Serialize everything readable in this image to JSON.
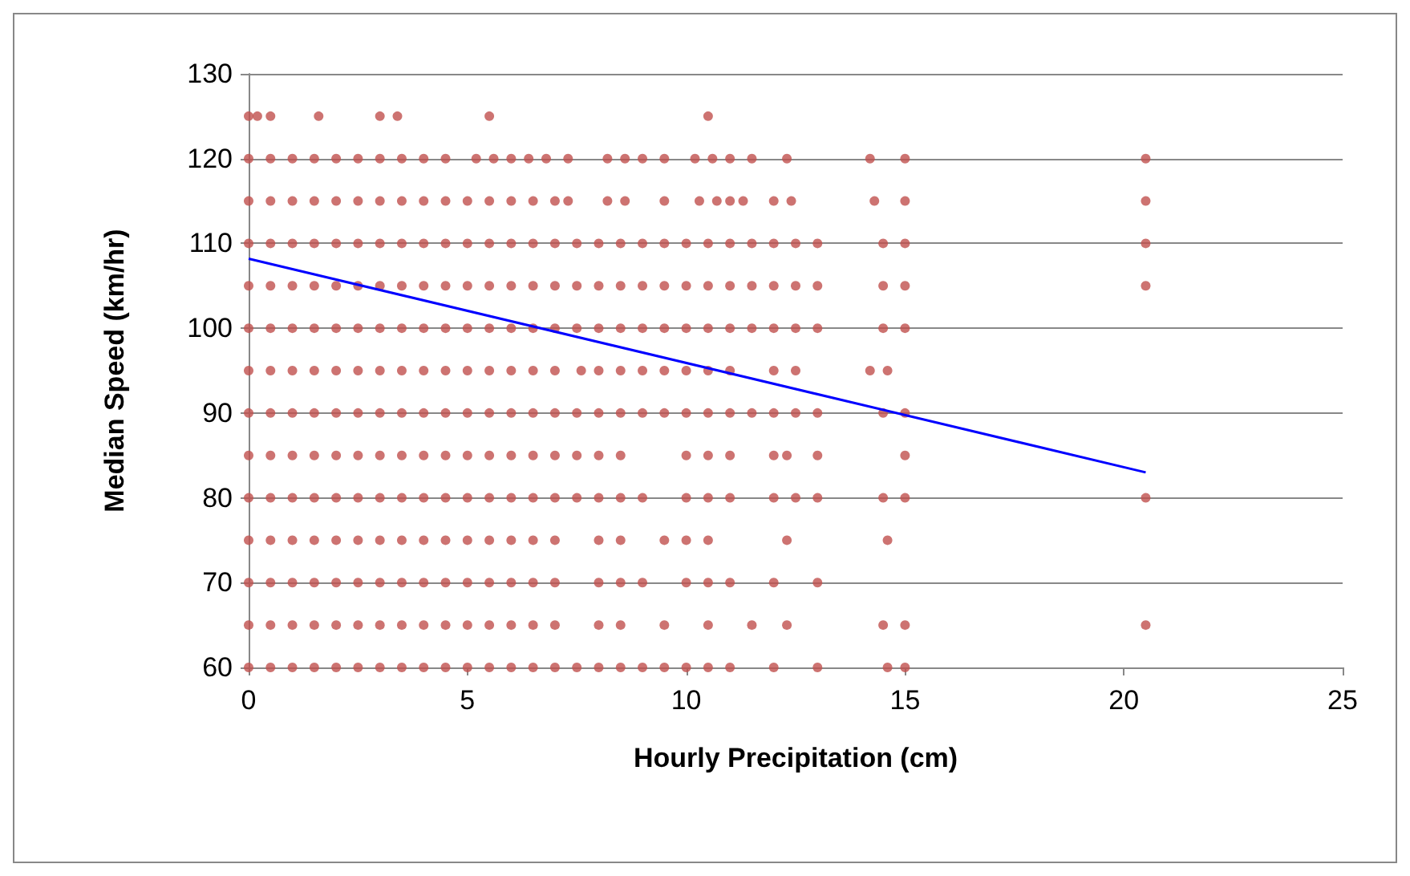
{
  "chart_data": {
    "type": "scatter",
    "xlabel": "Hourly Precipitation (cm)",
    "ylabel": "Median Speed (km/hr)",
    "xlim": [
      0,
      25
    ],
    "xticks": [
      0,
      5,
      10,
      15,
      20,
      25
    ],
    "ylim": [
      60,
      130
    ],
    "yticks": [
      60,
      70,
      80,
      90,
      100,
      110,
      120,
      130
    ],
    "grid": "y",
    "marker": "circle",
    "series": [
      {
        "color": "#c0504d",
        "x": [
          0,
          0.2,
          0.5,
          1.6,
          3,
          3.4,
          5.5,
          10.5
        ],
        "values": [
          125,
          125,
          125,
          125,
          125,
          125,
          125,
          125
        ]
      },
      {
        "color": "#c0504d",
        "x": [
          0,
          0.5,
          1,
          1.5,
          2,
          2.5,
          3,
          3.5,
          4,
          4.5,
          5.2,
          5.6,
          6,
          6.4,
          6.8,
          7.3,
          8.2,
          8.6,
          9,
          9.5,
          10.2,
          10.6,
          11,
          11.5,
          12.3,
          14.2,
          15,
          20.5
        ],
        "values": [
          120,
          120,
          120,
          120,
          120,
          120,
          120,
          120,
          120,
          120,
          120,
          120,
          120,
          120,
          120,
          120,
          120,
          120,
          120,
          120,
          120,
          120,
          120,
          120,
          120,
          120,
          120,
          120
        ]
      },
      {
        "color": "#c0504d",
        "x": [
          0,
          0.5,
          1,
          1.5,
          2,
          2.5,
          3,
          3.5,
          4,
          4.5,
          5,
          5.5,
          6,
          6.5,
          7,
          7.3,
          8.2,
          8.6,
          9.5,
          10.3,
          10.7,
          11,
          11.3,
          12,
          12.4,
          14.3,
          15,
          20.5
        ],
        "values": [
          115,
          115,
          115,
          115,
          115,
          115,
          115,
          115,
          115,
          115,
          115,
          115,
          115,
          115,
          115,
          115,
          115,
          115,
          115,
          115,
          115,
          115,
          115,
          115,
          115,
          115,
          115,
          115
        ]
      },
      {
        "color": "#c0504d",
        "x": [
          0,
          0.5,
          1,
          1.5,
          2,
          2.5,
          3,
          3.5,
          4,
          4.5,
          5,
          5.5,
          6,
          6.5,
          7,
          7.5,
          8,
          8.5,
          9,
          9.5,
          10,
          10.5,
          11,
          11.5,
          12,
          12.5,
          13,
          14.5,
          15,
          20.5
        ],
        "values": [
          110,
          110,
          110,
          110,
          110,
          110,
          110,
          110,
          110,
          110,
          110,
          110,
          110,
          110,
          110,
          110,
          110,
          110,
          110,
          110,
          110,
          110,
          110,
          110,
          110,
          110,
          110,
          110,
          110,
          110
        ]
      },
      {
        "color": "#c0504d",
        "x": [
          0,
          0.5,
          1,
          1.5,
          2,
          2.5,
          3,
          3.5,
          4,
          4.5,
          5,
          5.5,
          6,
          6.5,
          7,
          7.5,
          8,
          8.5,
          9,
          9.5,
          10,
          10.5,
          11,
          11.5,
          12,
          12.5,
          13,
          14.5,
          15,
          20.5
        ],
        "values": [
          105,
          105,
          105,
          105,
          105,
          105,
          105,
          105,
          105,
          105,
          105,
          105,
          105,
          105,
          105,
          105,
          105,
          105,
          105,
          105,
          105,
          105,
          105,
          105,
          105,
          105,
          105,
          105,
          105,
          105
        ]
      },
      {
        "color": "#c0504d",
        "x": [
          0,
          0.5,
          1,
          1.5,
          2,
          2.5,
          3,
          3.5,
          4,
          4.5,
          5,
          5.5,
          6,
          6.5,
          7,
          7.5,
          8,
          8.5,
          9,
          9.5,
          10,
          10.5,
          11,
          11.5,
          12,
          12.5,
          13,
          14.5,
          15
        ],
        "values": [
          100,
          100,
          100,
          100,
          100,
          100,
          100,
          100,
          100,
          100,
          100,
          100,
          100,
          100,
          100,
          100,
          100,
          100,
          100,
          100,
          100,
          100,
          100,
          100,
          100,
          100,
          100,
          100,
          100
        ]
      },
      {
        "color": "#c0504d",
        "x": [
          0,
          0.5,
          1,
          1.5,
          2,
          2.5,
          3,
          3.5,
          4,
          4.5,
          5,
          5.5,
          6,
          6.5,
          7,
          7.6,
          8,
          8.5,
          9,
          9.5,
          10,
          10.5,
          11,
          12,
          12.5,
          14.2,
          14.6
        ],
        "values": [
          95,
          95,
          95,
          95,
          95,
          95,
          95,
          95,
          95,
          95,
          95,
          95,
          95,
          95,
          95,
          95,
          95,
          95,
          95,
          95,
          95,
          95,
          95,
          95,
          95,
          95,
          95
        ]
      },
      {
        "color": "#c0504d",
        "x": [
          0,
          0.5,
          1,
          1.5,
          2,
          2.5,
          3,
          3.5,
          4,
          4.5,
          5,
          5.5,
          6,
          6.5,
          7,
          7.5,
          8,
          8.5,
          9,
          9.5,
          10,
          10.5,
          11,
          11.5,
          12,
          12.5,
          13,
          14.5,
          15
        ],
        "values": [
          90,
          90,
          90,
          90,
          90,
          90,
          90,
          90,
          90,
          90,
          90,
          90,
          90,
          90,
          90,
          90,
          90,
          90,
          90,
          90,
          90,
          90,
          90,
          90,
          90,
          90,
          90,
          90,
          90
        ]
      },
      {
        "color": "#c0504d",
        "x": [
          0,
          0.5,
          1,
          1.5,
          2,
          2.5,
          3,
          3.5,
          4,
          4.5,
          5,
          5.5,
          6,
          6.5,
          7,
          7.5,
          8,
          8.5,
          10,
          10.5,
          11,
          12,
          12.3,
          13,
          15
        ],
        "values": [
          85,
          85,
          85,
          85,
          85,
          85,
          85,
          85,
          85,
          85,
          85,
          85,
          85,
          85,
          85,
          85,
          85,
          85,
          85,
          85,
          85,
          85,
          85,
          85,
          85
        ]
      },
      {
        "color": "#c0504d",
        "x": [
          0,
          0.5,
          1,
          1.5,
          2,
          2.5,
          3,
          3.5,
          4,
          4.5,
          5,
          5.5,
          6,
          6.5,
          7,
          7.5,
          8,
          8.5,
          9,
          10,
          10.5,
          11,
          12,
          12.5,
          13,
          14.5,
          15,
          20.5
        ],
        "values": [
          80,
          80,
          80,
          80,
          80,
          80,
          80,
          80,
          80,
          80,
          80,
          80,
          80,
          80,
          80,
          80,
          80,
          80,
          80,
          80,
          80,
          80,
          80,
          80,
          80,
          80,
          80,
          80
        ]
      },
      {
        "color": "#c0504d",
        "x": [
          0,
          0.5,
          1,
          1.5,
          2,
          2.5,
          3,
          3.5,
          4,
          4.5,
          5,
          5.5,
          6,
          6.5,
          7,
          8,
          8.5,
          9.5,
          10,
          10.5,
          12.3,
          14.6
        ],
        "values": [
          75,
          75,
          75,
          75,
          75,
          75,
          75,
          75,
          75,
          75,
          75,
          75,
          75,
          75,
          75,
          75,
          75,
          75,
          75,
          75,
          75,
          75
        ]
      },
      {
        "color": "#c0504d",
        "x": [
          0,
          0.5,
          1,
          1.5,
          2,
          2.5,
          3,
          3.5,
          4,
          4.5,
          5,
          5.5,
          6,
          6.5,
          7,
          8,
          8.5,
          9,
          10,
          10.5,
          11,
          12,
          13
        ],
        "values": [
          70,
          70,
          70,
          70,
          70,
          70,
          70,
          70,
          70,
          70,
          70,
          70,
          70,
          70,
          70,
          70,
          70,
          70,
          70,
          70,
          70,
          70,
          70
        ]
      },
      {
        "color": "#c0504d",
        "x": [
          0,
          0.5,
          1,
          1.5,
          2,
          2.5,
          3,
          3.5,
          4,
          4.5,
          5,
          5.5,
          6,
          6.5,
          7,
          8,
          8.5,
          9.5,
          10.5,
          11.5,
          12.3,
          14.5,
          15,
          20.5
        ],
        "values": [
          65,
          65,
          65,
          65,
          65,
          65,
          65,
          65,
          65,
          65,
          65,
          65,
          65,
          65,
          65,
          65,
          65,
          65,
          65,
          65,
          65,
          65,
          65,
          65
        ]
      },
      {
        "color": "#c0504d",
        "x": [
          0,
          0.5,
          1,
          1.5,
          2,
          2.5,
          3,
          3.5,
          4,
          4.5,
          5,
          5.5,
          6,
          6.5,
          7,
          7.5,
          8,
          8.5,
          9,
          9.5,
          10,
          10.5,
          11,
          12,
          13,
          14.6,
          15
        ],
        "values": [
          60,
          60,
          60,
          60,
          60,
          60,
          60,
          60,
          60,
          60,
          60,
          60,
          60,
          60,
          60,
          60,
          60,
          60,
          60,
          60,
          60,
          60,
          60,
          60,
          60,
          60,
          60
        ]
      },
      {
        "type": "line",
        "color": "#0000ff",
        "marker": "none",
        "x": [
          0,
          20.5
        ],
        "values": [
          108.2,
          83
        ]
      }
    ]
  }
}
